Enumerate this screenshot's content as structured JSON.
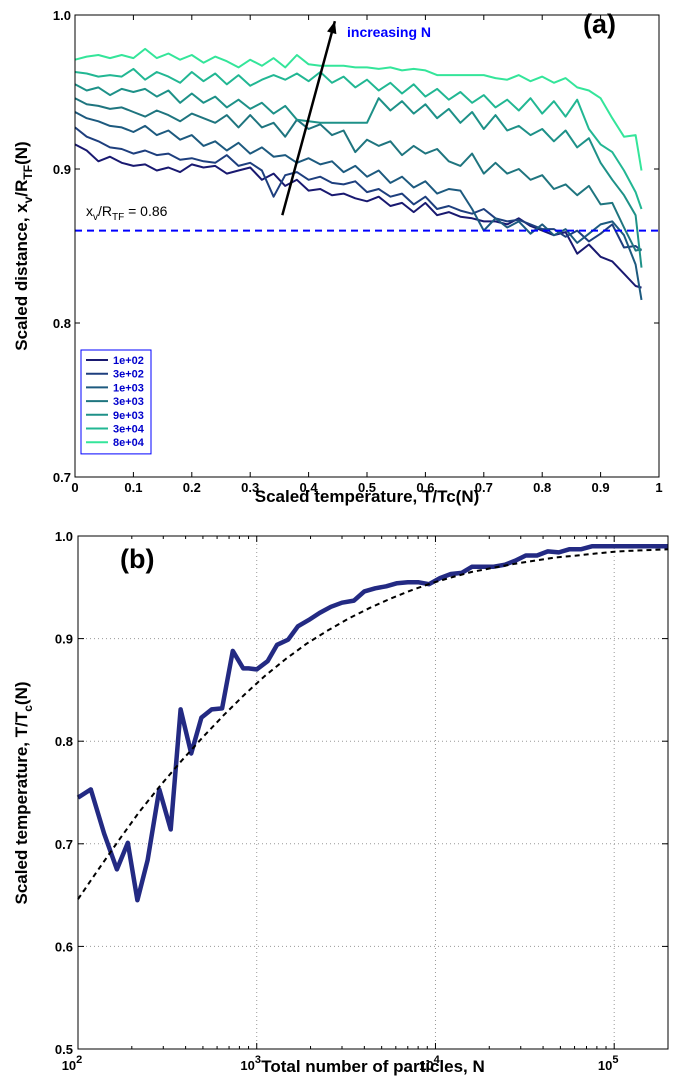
{
  "chart_data": [
    {
      "type": "line",
      "panel_label": "(a)",
      "xlabel": "Scaled temperature, T/Tc(N)",
      "ylabel": {
        "main": "Scaled distance, x",
        "sub1": "v",
        "mid": "/R",
        "sub2": "TF",
        "tail": "(N)"
      },
      "xlim": [
        0,
        1
      ],
      "ylim": [
        0.7,
        1.0
      ],
      "xticks": [
        "0",
        "0.1",
        "0.2",
        "0.3",
        "0.4",
        "0.5",
        "0.6",
        "0.7",
        "0.8",
        "0.9",
        "1"
      ],
      "yticks": [
        "0.7",
        "0.8",
        "0.9",
        "1.0"
      ],
      "grid": false,
      "legend_position": "bottom-left",
      "x": [
        0,
        0.02,
        0.04,
        0.06,
        0.08,
        0.1,
        0.12,
        0.14,
        0.16,
        0.18,
        0.2,
        0.22,
        0.24,
        0.26,
        0.28,
        0.3,
        0.32,
        0.34,
        0.36,
        0.38,
        0.4,
        0.42,
        0.44,
        0.46,
        0.48,
        0.5,
        0.52,
        0.54,
        0.56,
        0.58,
        0.6,
        0.62,
        0.64,
        0.66,
        0.68,
        0.7,
        0.72,
        0.74,
        0.76,
        0.78,
        0.8,
        0.82,
        0.84,
        0.86,
        0.88,
        0.9,
        0.92,
        0.94,
        0.96,
        0.97
      ],
      "series": [
        {
          "name": "1e+02",
          "color": "#191970",
          "values": [
            0.916,
            0.912,
            0.905,
            0.908,
            0.904,
            0.902,
            0.903,
            0.899,
            0.901,
            0.898,
            0.903,
            0.901,
            0.902,
            0.897,
            0.899,
            0.901,
            0.893,
            0.897,
            0.889,
            0.893,
            0.886,
            0.887,
            0.883,
            0.884,
            0.881,
            0.879,
            0.882,
            0.876,
            0.878,
            0.872,
            0.878,
            0.87,
            0.872,
            0.869,
            0.868,
            0.866,
            0.866,
            0.864,
            0.868,
            0.863,
            0.86,
            0.857,
            0.859,
            0.845,
            0.851,
            0.843,
            0.84,
            0.832,
            0.824,
            0.823
          ]
        },
        {
          "name": "3e+02",
          "color": "#1e3f7e",
          "values": [
            0.927,
            0.921,
            0.918,
            0.914,
            0.913,
            0.91,
            0.912,
            0.909,
            0.91,
            0.906,
            0.907,
            0.905,
            0.904,
            0.909,
            0.902,
            0.904,
            0.899,
            0.882,
            0.896,
            0.898,
            0.893,
            0.895,
            0.891,
            0.89,
            0.892,
            0.885,
            0.887,
            0.882,
            0.884,
            0.877,
            0.882,
            0.874,
            0.876,
            0.873,
            0.871,
            0.874,
            0.868,
            0.866,
            0.867,
            0.864,
            0.861,
            0.861,
            0.856,
            0.86,
            0.853,
            0.858,
            0.864,
            0.849,
            0.85,
            0.847
          ]
        },
        {
          "name": "1e+03",
          "color": "#1d5a7f",
          "values": [
            0.937,
            0.933,
            0.931,
            0.928,
            0.927,
            0.924,
            0.928,
            0.922,
            0.925,
            0.919,
            0.922,
            0.915,
            0.918,
            0.912,
            0.917,
            0.91,
            0.914,
            0.908,
            0.909,
            0.904,
            0.907,
            0.903,
            0.905,
            0.898,
            0.902,
            0.895,
            0.899,
            0.891,
            0.895,
            0.888,
            0.892,
            0.884,
            0.887,
            0.886,
            0.874,
            0.86,
            0.868,
            0.862,
            0.866,
            0.858,
            0.864,
            0.857,
            0.861,
            0.852,
            0.858,
            0.864,
            0.866,
            0.857,
            0.838,
            0.815
          ]
        },
        {
          "name": "3e+03",
          "color": "#1f757f",
          "values": [
            0.946,
            0.942,
            0.941,
            0.939,
            0.94,
            0.937,
            0.934,
            0.938,
            0.935,
            0.931,
            0.936,
            0.933,
            0.93,
            0.935,
            0.927,
            0.935,
            0.927,
            0.93,
            0.921,
            0.932,
            0.926,
            0.929,
            0.922,
            0.925,
            0.911,
            0.919,
            0.915,
            0.918,
            0.909,
            0.915,
            0.91,
            0.913,
            0.905,
            0.902,
            0.91,
            0.897,
            0.904,
            0.897,
            0.9,
            0.893,
            0.896,
            0.887,
            0.89,
            0.883,
            0.889,
            0.877,
            0.878,
            0.862,
            0.847,
            0.848
          ]
        },
        {
          "name": "9e+03",
          "color": "#1e9188",
          "values": [
            0.955,
            0.951,
            0.953,
            0.948,
            0.952,
            0.95,
            0.952,
            0.947,
            0.951,
            0.943,
            0.949,
            0.943,
            0.947,
            0.94,
            0.945,
            0.939,
            0.943,
            0.936,
            0.941,
            0.932,
            0.931,
            0.93,
            0.93,
            0.93,
            0.93,
            0.93,
            0.946,
            0.938,
            0.944,
            0.936,
            0.942,
            0.933,
            0.939,
            0.93,
            0.937,
            0.926,
            0.935,
            0.925,
            0.928,
            0.922,
            0.926,
            0.918,
            0.925,
            0.914,
            0.92,
            0.904,
            0.893,
            0.883,
            0.87,
            0.836
          ]
        },
        {
          "name": "3e+04",
          "color": "#22b793",
          "values": [
            0.963,
            0.962,
            0.96,
            0.961,
            0.96,
            0.965,
            0.958,
            0.963,
            0.96,
            0.956,
            0.963,
            0.957,
            0.962,
            0.955,
            0.961,
            0.954,
            0.958,
            0.961,
            0.958,
            0.962,
            0.957,
            0.963,
            0.956,
            0.96,
            0.953,
            0.958,
            0.951,
            0.956,
            0.949,
            0.955,
            0.947,
            0.952,
            0.945,
            0.95,
            0.943,
            0.948,
            0.94,
            0.945,
            0.938,
            0.946,
            0.936,
            0.944,
            0.934,
            0.945,
            0.926,
            0.916,
            0.911,
            0.899,
            0.885,
            0.874
          ]
        },
        {
          "name": "8e+04",
          "color": "#34e59a",
          "values": [
            0.971,
            0.973,
            0.974,
            0.972,
            0.974,
            0.972,
            0.978,
            0.972,
            0.975,
            0.971,
            0.974,
            0.969,
            0.973,
            0.97,
            0.966,
            0.971,
            0.967,
            0.972,
            0.966,
            0.974,
            0.968,
            0.967,
            0.967,
            0.967,
            0.966,
            0.966,
            0.965,
            0.966,
            0.964,
            0.965,
            0.964,
            0.961,
            0.961,
            0.961,
            0.961,
            0.961,
            0.959,
            0.958,
            0.961,
            0.957,
            0.96,
            0.956,
            0.959,
            0.953,
            0.951,
            0.946,
            0.933,
            0.921,
            0.922,
            0.899
          ]
        }
      ],
      "reference_line": {
        "y": 0.86,
        "color": "#0000ff",
        "label": {
          "main": "x",
          "sub1": "v",
          "mid": "/R",
          "sub2": "TF",
          "tail": " = 0.86"
        }
      },
      "annotation": {
        "text": "increasing N",
        "color": "#0000ff",
        "arrow_from": [
          0.355,
          0.87
        ],
        "arrow_to": [
          0.445,
          0.996
        ]
      }
    },
    {
      "type": "line",
      "panel_label": "(b)",
      "xlabel": "Total number of particles, N",
      "ylabel": {
        "main": "Scaled temperature, T/T",
        "sub": "c",
        "tail": "(N)"
      },
      "xscale": "log",
      "xlim": [
        100,
        200000
      ],
      "ylim": [
        0.5,
        1.0
      ],
      "xticks": [
        {
          "base": "10",
          "exp": "2",
          "value": 100
        },
        {
          "base": "10",
          "exp": "3",
          "value": 1000
        },
        {
          "base": "10",
          "exp": "4",
          "value": 10000
        },
        {
          "base": "10",
          "exp": "5",
          "value": 100000
        }
      ],
      "yticks": [
        "0.5",
        "0.6",
        "0.7",
        "0.8",
        "0.9",
        "1.0"
      ],
      "grid": true,
      "series": [
        {
          "color": "#232a83",
          "style": "solid",
          "x": [
            100,
            118,
            140,
            165,
            190,
            215,
            245,
            285,
            330,
            375,
            430,
            490,
            560,
            640,
            735,
            840,
            900,
            1000,
            1150,
            1300,
            1500,
            1700,
            1950,
            2250,
            2600,
            3000,
            3500,
            4000,
            4600,
            5300,
            6100,
            7000,
            8000,
            9200,
            10600,
            12200,
            14000,
            16000,
            18500,
            21000,
            24500,
            28000,
            32000,
            37000,
            42500,
            49000,
            56000,
            65000,
            75000,
            86000,
            100000,
            130000,
            170000,
            200000
          ],
          "values": [
            0.745,
            0.753,
            0.71,
            0.675,
            0.701,
            0.645,
            0.684,
            0.753,
            0.714,
            0.831,
            0.788,
            0.823,
            0.831,
            0.832,
            0.888,
            0.871,
            0.871,
            0.87,
            0.878,
            0.894,
            0.899,
            0.912,
            0.918,
            0.925,
            0.931,
            0.935,
            0.937,
            0.946,
            0.949,
            0.951,
            0.954,
            0.955,
            0.955,
            0.953,
            0.959,
            0.963,
            0.964,
            0.97,
            0.97,
            0.97,
            0.972,
            0.976,
            0.981,
            0.981,
            0.985,
            0.984,
            0.987,
            0.987,
            0.99,
            0.99,
            0.99,
            0.99,
            0.99,
            0.99
          ]
        },
        {
          "color": "#000000",
          "style": "dashed",
          "x": [
            100,
            130,
            170,
            220,
            290,
            380,
            500,
            650,
            850,
            1100,
            1450,
            1900,
            2500,
            3300,
            4300,
            5600,
            7300,
            9500,
            12500,
            16000,
            21000,
            28000,
            36000,
            47000,
            62000,
            80000,
            105000,
            140000,
            200000
          ],
          "values": [
            0.646,
            0.675,
            0.704,
            0.731,
            0.757,
            0.781,
            0.804,
            0.825,
            0.845,
            0.863,
            0.88,
            0.895,
            0.908,
            0.92,
            0.93,
            0.939,
            0.947,
            0.954,
            0.96,
            0.965,
            0.969,
            0.973,
            0.976,
            0.979,
            0.981,
            0.983,
            0.985,
            0.986,
            0.987
          ]
        }
      ]
    }
  ]
}
